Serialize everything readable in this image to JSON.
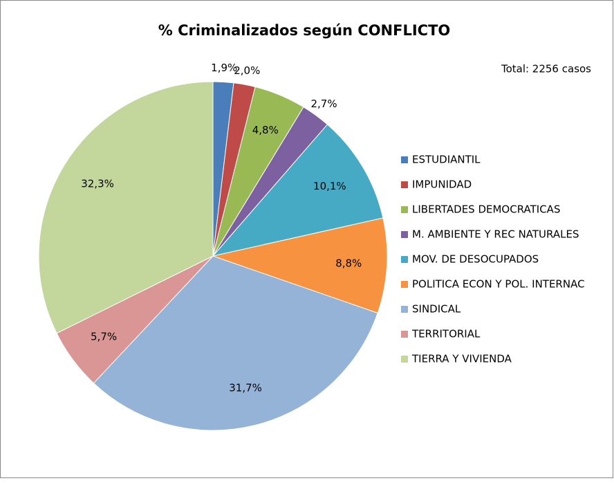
{
  "chart_data": {
    "type": "pie",
    "title": "% Criminalizados según CONFLICTO",
    "annotation": "Total: 2256 casos",
    "categories": [
      "ESTUDIANTIL",
      "IMPUNIDAD",
      "LIBERTADES DEMOCRATICAS",
      "M. AMBIENTE Y REC NATURALES",
      "MOV. DE DESOCUPADOS",
      "POLITICA ECON Y POL. INTERNAC",
      "SINDICAL",
      "TERRITORIAL",
      "TIERRA Y VIVIENDA"
    ],
    "values": [
      1.9,
      2.0,
      4.8,
      2.7,
      10.1,
      8.8,
      31.7,
      5.7,
      32.3
    ],
    "value_labels": [
      "1,9%",
      "2,0%",
      "4,8%",
      "2,7%",
      "10,1%",
      "8,8%",
      "31,7%",
      "5,7%",
      "32,3%"
    ],
    "colors": [
      "#4a7ebb",
      "#be4b48",
      "#98b954",
      "#7d60a0",
      "#46aac5",
      "#f69240",
      "#95b3d7",
      "#d99694",
      "#c3d69b"
    ],
    "legend": "right"
  }
}
